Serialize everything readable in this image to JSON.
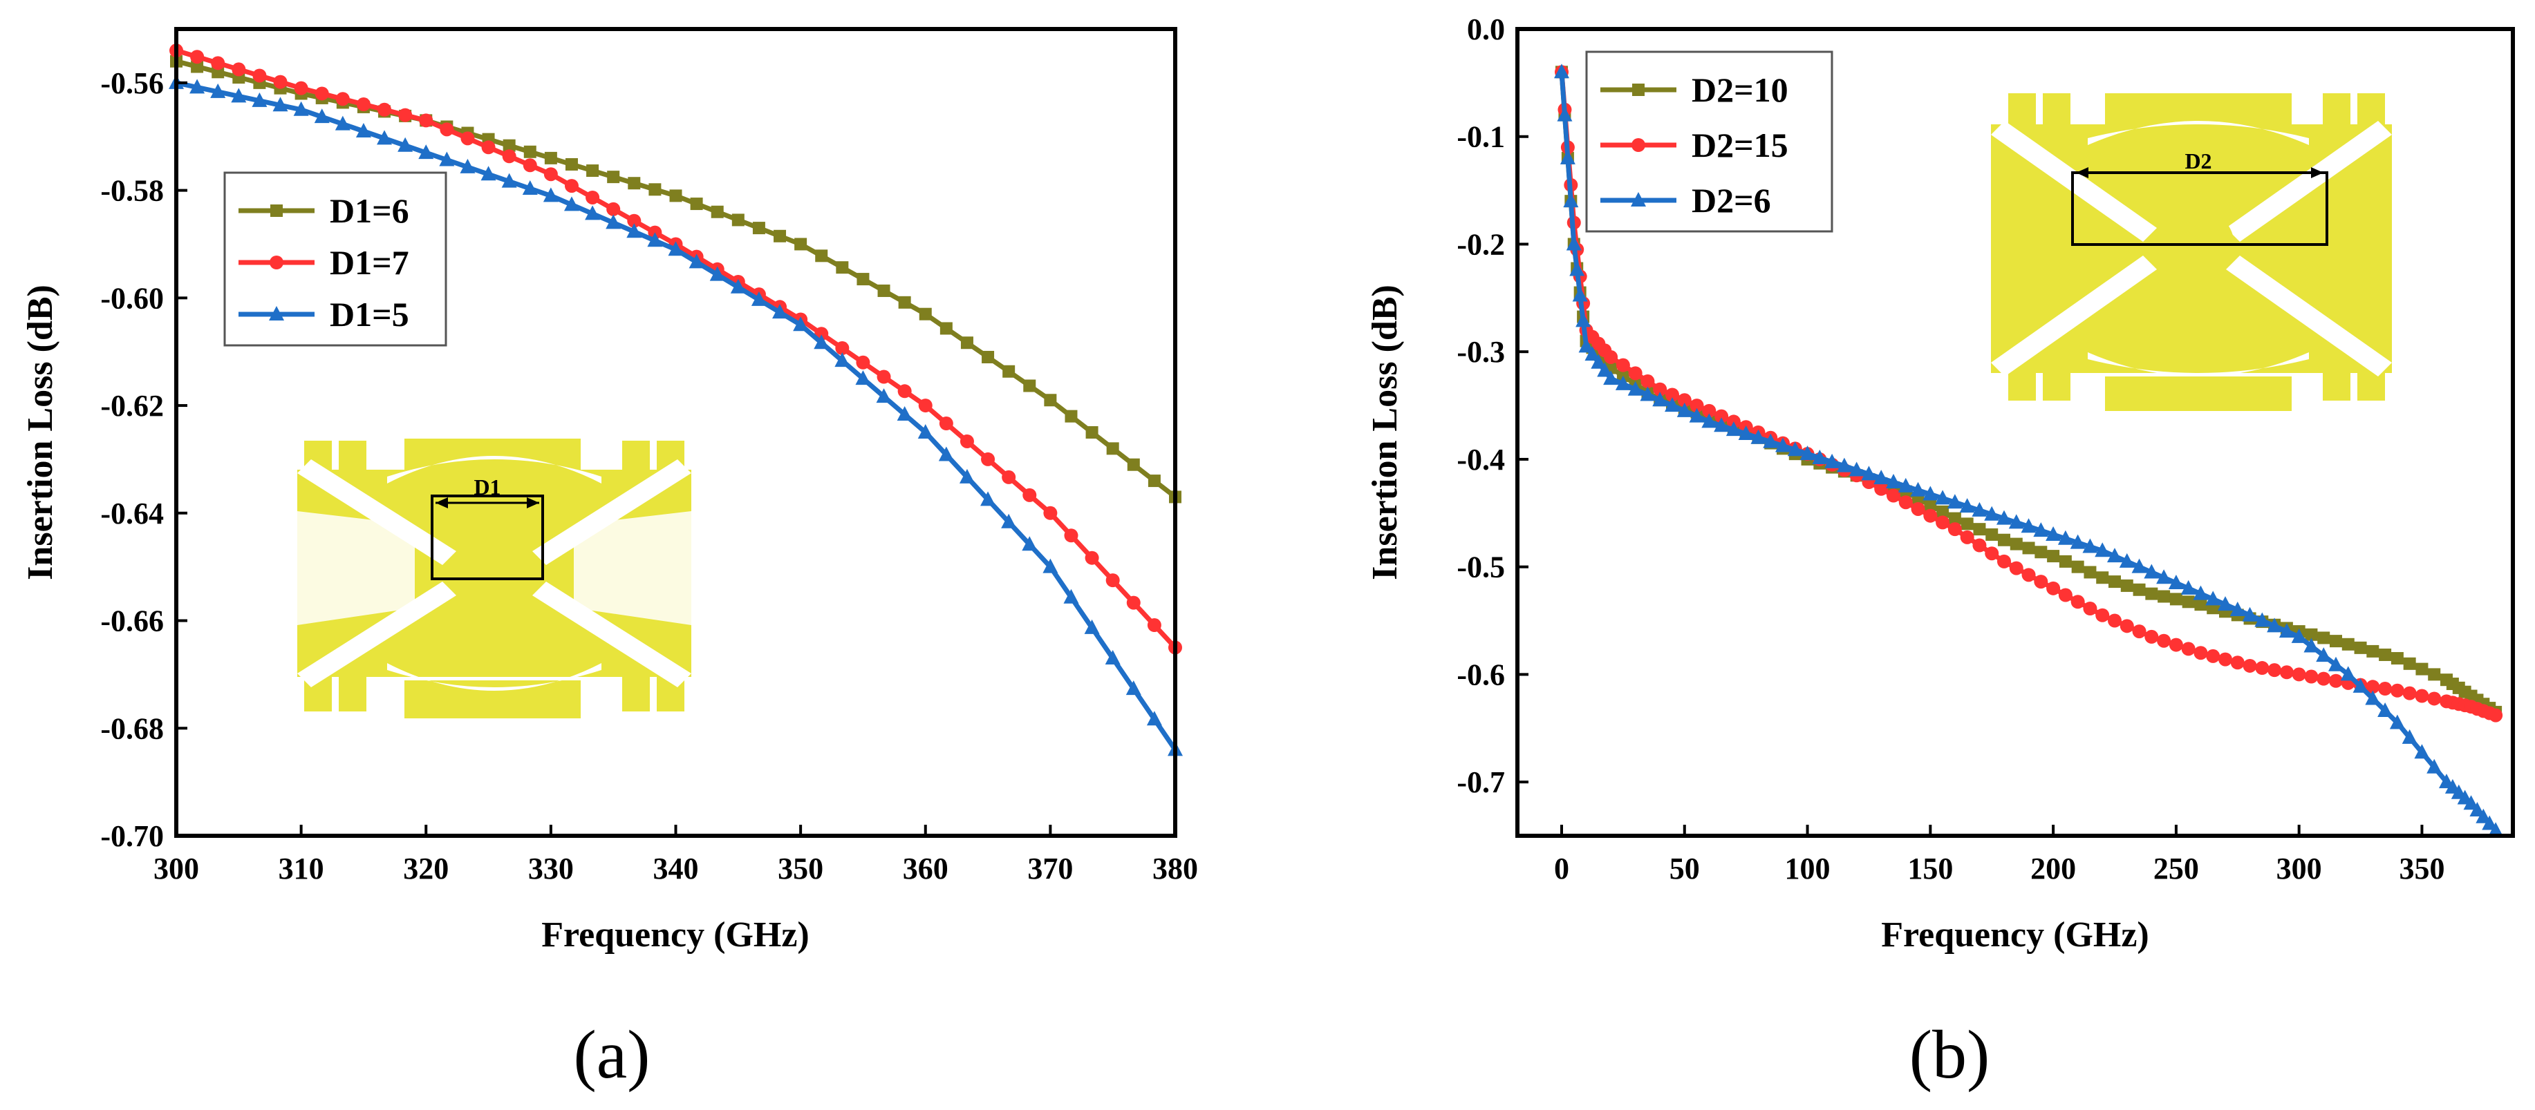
{
  "chart_data": [
    {
      "type": "line",
      "panel_label": "(a)",
      "xlabel": "Frequency (GHz)",
      "ylabel": "Insertion Loss (dB)",
      "xlim": [
        300,
        380
      ],
      "ylim": [
        -0.7,
        -0.55
      ],
      "xticks": [
        300,
        310,
        320,
        330,
        340,
        350,
        360,
        370,
        380
      ],
      "yticks": [
        -0.7,
        -0.68,
        -0.66,
        -0.64,
        -0.62,
        -0.6,
        -0.58,
        -0.56
      ],
      "legend_position": "upper-left",
      "inset_label": "D1",
      "x": [
        300,
        310,
        320,
        330,
        340,
        350,
        360,
        370,
        380
      ],
      "series": [
        {
          "name": "D1=6",
          "color": "#7f7f1f",
          "marker": "square",
          "values": [
            -0.556,
            -0.562,
            -0.567,
            -0.574,
            -0.581,
            -0.59,
            -0.603,
            -0.619,
            -0.637
          ]
        },
        {
          "name": "D1=7",
          "color": "#ff3333",
          "marker": "circle",
          "values": [
            -0.554,
            -0.561,
            -0.567,
            -0.577,
            -0.59,
            -0.604,
            -0.62,
            -0.64,
            -0.665
          ]
        },
        {
          "name": "D1=5",
          "color": "#1f6fc8",
          "marker": "triangle",
          "values": [
            -0.56,
            -0.565,
            -0.573,
            -0.581,
            -0.591,
            -0.605,
            -0.625,
            -0.65,
            -0.684
          ]
        }
      ]
    },
    {
      "type": "line",
      "panel_label": "(b)",
      "xlabel": "Frequency (GHz)",
      "ylabel": "Insertion Loss (dB)",
      "xlim": [
        -18,
        387
      ],
      "ylim": [
        -0.75,
        0.0
      ],
      "xticks": [
        0,
        50,
        100,
        150,
        200,
        250,
        300,
        350
      ],
      "yticks": [
        -0.7,
        -0.6,
        -0.5,
        -0.4,
        -0.3,
        -0.2,
        -0.1,
        0.0
      ],
      "legend_position": "upper-left",
      "inset_label": "D2",
      "x": [
        0,
        5,
        10,
        20,
        40,
        60,
        80,
        100,
        120,
        140,
        160,
        180,
        200,
        220,
        240,
        260,
        280,
        300,
        320,
        340,
        360,
        370,
        380
      ],
      "series": [
        {
          "name": "D2=10",
          "color": "#7f7f1f",
          "marker": "square",
          "values": [
            -0.04,
            -0.2,
            -0.29,
            -0.315,
            -0.345,
            -0.36,
            -0.38,
            -0.4,
            -0.415,
            -0.43,
            -0.455,
            -0.475,
            -0.49,
            -0.51,
            -0.525,
            -0.535,
            -0.548,
            -0.56,
            -0.572,
            -0.585,
            -0.605,
            -0.62,
            -0.635
          ]
        },
        {
          "name": "D2=15",
          "color": "#ff3333",
          "marker": "circle",
          "values": [
            -0.04,
            -0.18,
            -0.28,
            -0.305,
            -0.335,
            -0.355,
            -0.375,
            -0.395,
            -0.415,
            -0.44,
            -0.465,
            -0.495,
            -0.52,
            -0.545,
            -0.565,
            -0.58,
            -0.592,
            -0.6,
            -0.608,
            -0.615,
            -0.625,
            -0.63,
            -0.638
          ]
        },
        {
          "name": "D2=6",
          "color": "#1f6fc8",
          "marker": "triangle",
          "values": [
            -0.04,
            -0.2,
            -0.295,
            -0.325,
            -0.345,
            -0.365,
            -0.38,
            -0.395,
            -0.41,
            -0.425,
            -0.44,
            -0.455,
            -0.47,
            -0.485,
            -0.505,
            -0.525,
            -0.545,
            -0.565,
            -0.6,
            -0.645,
            -0.7,
            -0.72,
            -0.745
          ]
        }
      ]
    }
  ]
}
